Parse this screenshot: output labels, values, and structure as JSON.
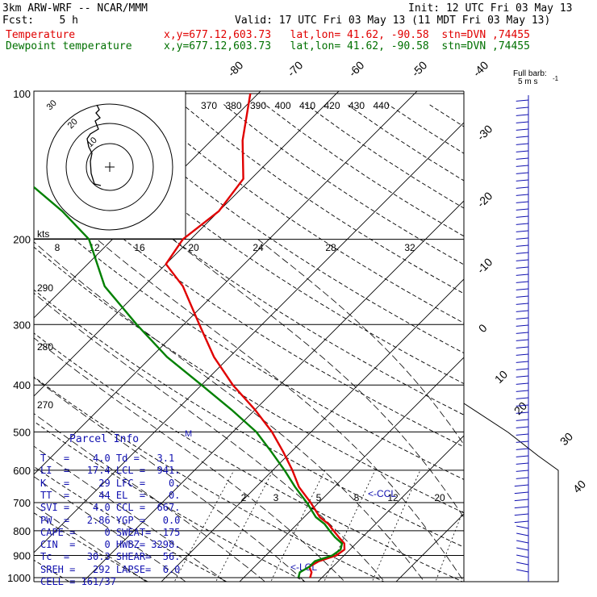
{
  "header": {
    "model": "3km ARW-WRF -- NCAR/MMM",
    "init": "Init: 12 UTC Fri 03 May 13",
    "fcst": "Fcst:    5 h",
    "valid": "Valid: 17 UTC Fri 03 May 13 (11 MDT Fri 03 May 13)",
    "temperature_label": "Temperature",
    "dewpoint_label": "Dewpoint temperature",
    "temperature_info": "x,y=677.12,603.73   lat,lon= 41.62, -90.58  stn=DVN ,74455",
    "dewpoint_info": "x,y=677.12,603.73   lat,lon= 41.62, -90.58  stn=DVN ,74455"
  },
  "parcel_info": {
    "title": "Parcel Info",
    "rows": [
      "T   =    4.0 Td =   3.1",
      "LI  =   17.4 LCL =  941.",
      "K   =     29 LFC =    0.",
      "TT  =     44 EL  =    0.",
      "SVI =    4.0 CCL =  667.",
      "PW  =   2.86 YGP =   0.0",
      "CAPE =     0 SWEAT=  175",
      "CIN  =     0 HWBZ= 3298.",
      "Tc  =   30.3 SHEAR=  56.",
      "SREH =   292 LAPSE=  6.0",
      "CELL = 161/37"
    ]
  },
  "chart_data": {
    "type": "line",
    "title": "",
    "pressure_levels": [
      100,
      200,
      300,
      400,
      500,
      600,
      700,
      800,
      900,
      1000
    ],
    "skewed_isotherm_labels": [
      "-80",
      "-70",
      "-60",
      "-50",
      "-40",
      "-30",
      "-20",
      "-10",
      "0",
      "10",
      "20",
      "30",
      "40"
    ],
    "theta_labels": [
      "370",
      "380",
      "390",
      "400",
      "410",
      "420",
      "430",
      "440"
    ],
    "mixing_ratio_labels": [
      "2",
      "3",
      "5",
      "8",
      "12",
      "20"
    ],
    "dry_adiabat_labels": [
      "290",
      "280",
      "270"
    ],
    "hodograph_speed_labels": [
      "kts",
      "8",
      "12",
      "16",
      "20",
      "24",
      "28",
      "32"
    ],
    "hodograph_ring_labels": [
      "10",
      "20",
      "30"
    ],
    "annotations": [
      "<-CCL",
      "<-LCL",
      "M",
      "Full barb:",
      "5 m s",
      "-1"
    ],
    "series": [
      {
        "name": "Temperature",
        "color": "#e00000",
        "points": [
          [
            1000,
            8.5
          ],
          [
            975,
            8
          ],
          [
            950,
            7
          ],
          [
            925,
            7.5
          ],
          [
            900,
            9
          ],
          [
            875,
            9.3
          ],
          [
            850,
            8.5
          ],
          [
            825,
            7
          ],
          [
            800,
            5.5
          ],
          [
            775,
            4
          ],
          [
            750,
            2
          ],
          [
            700,
            -1
          ],
          [
            650,
            -4.5
          ],
          [
            600,
            -7.5
          ],
          [
            550,
            -11
          ],
          [
            500,
            -15
          ],
          [
            450,
            -20
          ],
          [
            400,
            -26
          ],
          [
            350,
            -32
          ],
          [
            300,
            -38
          ],
          [
            250,
            -45
          ],
          [
            225,
            -50
          ],
          [
            200,
            -51
          ],
          [
            175,
            -50
          ],
          [
            150,
            -51
          ],
          [
            125,
            -56
          ],
          [
            100,
            -61
          ]
        ]
      },
      {
        "name": "Dewpoint temperature",
        "color": "#008000",
        "points": [
          [
            1000,
            7
          ],
          [
            975,
            6.5
          ],
          [
            950,
            7
          ],
          [
            925,
            7
          ],
          [
            900,
            8.5
          ],
          [
            875,
            8.8
          ],
          [
            850,
            8.2
          ],
          [
            825,
            6.5
          ],
          [
            800,
            5
          ],
          [
            775,
            3.5
          ],
          [
            750,
            1.5
          ],
          [
            700,
            -1.5
          ],
          [
            650,
            -5
          ],
          [
            600,
            -8.5
          ],
          [
            550,
            -12.5
          ],
          [
            500,
            -17
          ],
          [
            450,
            -23
          ],
          [
            400,
            -30
          ],
          [
            350,
            -38
          ],
          [
            300,
            -46
          ],
          [
            250,
            -55
          ],
          [
            200,
            -63
          ],
          [
            175,
            -70
          ],
          [
            150,
            -79
          ],
          [
            125,
            -92
          ],
          [
            100,
            -103
          ]
        ]
      }
    ]
  }
}
